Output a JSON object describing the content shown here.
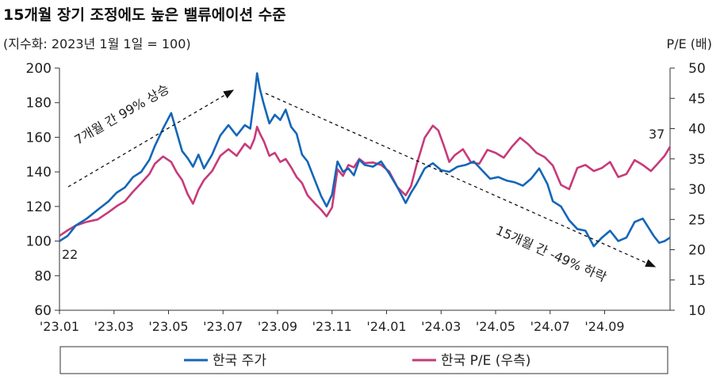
{
  "chart_data": {
    "type": "line",
    "title": "15개월 장기 조정에도 높은 밸류에이션 수준",
    "subtitle": "(지수화: 2023년 1월 1일 = 100)",
    "right_axis_label": "P/E (배)",
    "x_ticks": [
      "'23.01",
      "'23.03",
      "'23.05",
      "'23.07",
      "'23.09",
      "'23.11",
      "'24.01",
      "'24.03",
      "'24.05",
      "'24.07",
      "'24.09"
    ],
    "y_left": {
      "min": 60,
      "max": 200,
      "ticks": [
        60,
        80,
        100,
        120,
        140,
        160,
        180,
        200
      ]
    },
    "y_right": {
      "min": 10,
      "max": 50,
      "ticks": [
        10,
        15,
        20,
        25,
        30,
        35,
        40,
        45,
        50
      ]
    },
    "series": [
      {
        "name": "한국 주가",
        "color": "#1466b8",
        "axis": "left",
        "x": [
          0,
          0.3,
          0.6,
          1.0,
          1.4,
          1.8,
          2.1,
          2.4,
          2.7,
          3.0,
          3.3,
          3.5,
          3.8,
          4.1,
          4.3,
          4.5,
          4.7,
          4.9,
          5.1,
          5.3,
          5.6,
          5.9,
          6.2,
          6.5,
          6.8,
          7.0,
          7.15,
          7.25,
          7.35,
          7.5,
          7.7,
          7.9,
          8.1,
          8.3,
          8.5,
          8.7,
          8.9,
          9.1,
          9.4,
          9.6,
          9.8,
          10.0,
          10.2,
          10.4,
          10.6,
          10.8,
          11.0,
          11.2,
          11.5,
          11.8,
          12.1,
          12.4,
          12.7,
          12.9,
          13.1,
          13.4,
          13.7,
          14.0,
          14.3,
          14.6,
          14.9,
          15.2,
          15.5,
          15.8,
          16.1,
          16.4,
          16.7,
          17.0,
          17.3,
          17.6,
          17.9,
          18.1,
          18.4,
          18.7,
          19.0,
          19.3,
          19.6,
          19.9,
          20.2,
          20.5,
          20.8,
          21.1,
          21.4,
          21.6,
          21.8,
          22.0,
          22.2,
          22.4
        ],
        "values": [
          100,
          103,
          109,
          113,
          118,
          123,
          128,
          131,
          137,
          140,
          147,
          155,
          165,
          174,
          163,
          152,
          148,
          143,
          150,
          142,
          150,
          161,
          167,
          161,
          167,
          165,
          183,
          197,
          188,
          179,
          168,
          173,
          170,
          176,
          166,
          162,
          150,
          146,
          134,
          126,
          120,
          127,
          146,
          140,
          142,
          138,
          147,
          144,
          143,
          146,
          139,
          131,
          122,
          128,
          133,
          142,
          145,
          141,
          140,
          143,
          144,
          146,
          141,
          136,
          137,
          135,
          134,
          132,
          136,
          142,
          133,
          123,
          120,
          112,
          107,
          106,
          97,
          102,
          106,
          100,
          102,
          111,
          113,
          108,
          103,
          99,
          100,
          102
        ]
      },
      {
        "name": "한국 P/E (우측)",
        "color": "#c73a7a",
        "axis": "right",
        "x": [
          0,
          0.3,
          0.6,
          1.0,
          1.4,
          1.8,
          2.1,
          2.4,
          2.7,
          3.0,
          3.3,
          3.5,
          3.8,
          4.1,
          4.3,
          4.5,
          4.7,
          4.9,
          5.1,
          5.3,
          5.6,
          5.9,
          6.2,
          6.5,
          6.8,
          7.0,
          7.15,
          7.25,
          7.35,
          7.5,
          7.7,
          7.9,
          8.1,
          8.3,
          8.5,
          8.7,
          8.9,
          9.1,
          9.4,
          9.6,
          9.8,
          10.0,
          10.2,
          10.4,
          10.6,
          10.8,
          11.0,
          11.2,
          11.5,
          11.8,
          12.1,
          12.4,
          12.7,
          12.9,
          13.1,
          13.4,
          13.7,
          13.9,
          14.1,
          14.3,
          14.5,
          14.8,
          15.1,
          15.4,
          15.7,
          16.0,
          16.3,
          16.6,
          16.9,
          17.2,
          17.5,
          17.8,
          18.1,
          18.4,
          18.7,
          19.0,
          19.3,
          19.6,
          19.9,
          20.2,
          20.5,
          20.8,
          21.1,
          21.4,
          21.7,
          22.0,
          22.2,
          22.4
        ],
        "values": [
          22.3,
          23.2,
          24.0,
          24.6,
          25.0,
          26.2,
          27.2,
          28.0,
          29.6,
          31.0,
          32.5,
          34.2,
          35.4,
          34.5,
          32.8,
          31.5,
          29.2,
          27.6,
          29.9,
          31.5,
          33.0,
          35.5,
          36.6,
          35.5,
          37.5,
          36.7,
          38.3,
          40.3,
          39.2,
          37.9,
          35.5,
          36.0,
          34.5,
          35.0,
          33.6,
          32.0,
          31.0,
          29.0,
          27.5,
          26.6,
          25.5,
          27.0,
          33.3,
          32.2,
          34.0,
          33.6,
          35.0,
          34.3,
          34.4,
          34.0,
          32.9,
          30.3,
          29.0,
          30.5,
          34.0,
          38.5,
          40.5,
          39.7,
          37.2,
          34.5,
          35.6,
          36.6,
          34.4,
          34.2,
          36.5,
          36.0,
          35.2,
          37.0,
          38.5,
          37.4,
          36.0,
          35.3,
          33.9,
          30.7,
          30.0,
          33.5,
          34.0,
          33.0,
          33.5,
          34.5,
          32.0,
          32.5,
          34.8,
          34.0,
          33.0,
          34.5,
          35.5,
          37.0
        ]
      }
    ],
    "x_domain": [
      0,
      22.4
    ],
    "annotations": {
      "rise_text": "7개월 간 99% 상승",
      "fall_text": "15개월 간 -49% 하락",
      "start_label": "22",
      "end_label": "37"
    },
    "legend": {
      "position": "bottom",
      "items": [
        "한국 주가",
        "한국 P/E (우측)"
      ]
    }
  }
}
